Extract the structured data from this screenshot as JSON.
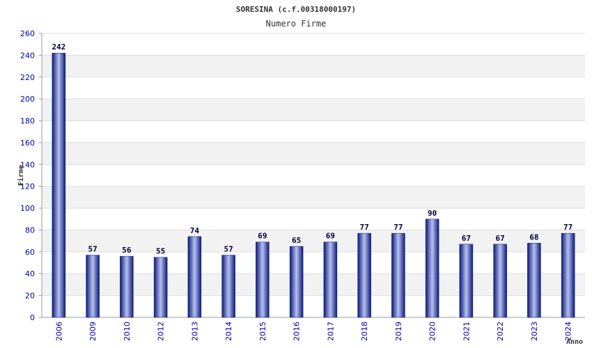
{
  "chart_data": {
    "type": "bar",
    "title": "SORESINA (c.f.00318000197)",
    "subtitle": "Numero Firme",
    "xlabel": "Anno",
    "ylabel": "Firme",
    "categories": [
      "2006",
      "2009",
      "2010",
      "2012",
      "2013",
      "2014",
      "2015",
      "2016",
      "2017",
      "2018",
      "2019",
      "2020",
      "2021",
      "2022",
      "2023",
      "2024"
    ],
    "values": [
      242,
      57,
      56,
      55,
      74,
      57,
      69,
      65,
      69,
      77,
      77,
      90,
      67,
      67,
      68,
      77
    ],
    "ylim": [
      0,
      260
    ],
    "yticks": [
      0,
      20,
      40,
      60,
      80,
      100,
      120,
      140,
      160,
      180,
      200,
      220,
      240,
      260
    ],
    "grid": true,
    "colors": {
      "bar_dark": "#0a1a7a",
      "bar_light": "#b8c0f0",
      "band": "#f2f2f2",
      "tick_text": "#0000aa"
    }
  }
}
